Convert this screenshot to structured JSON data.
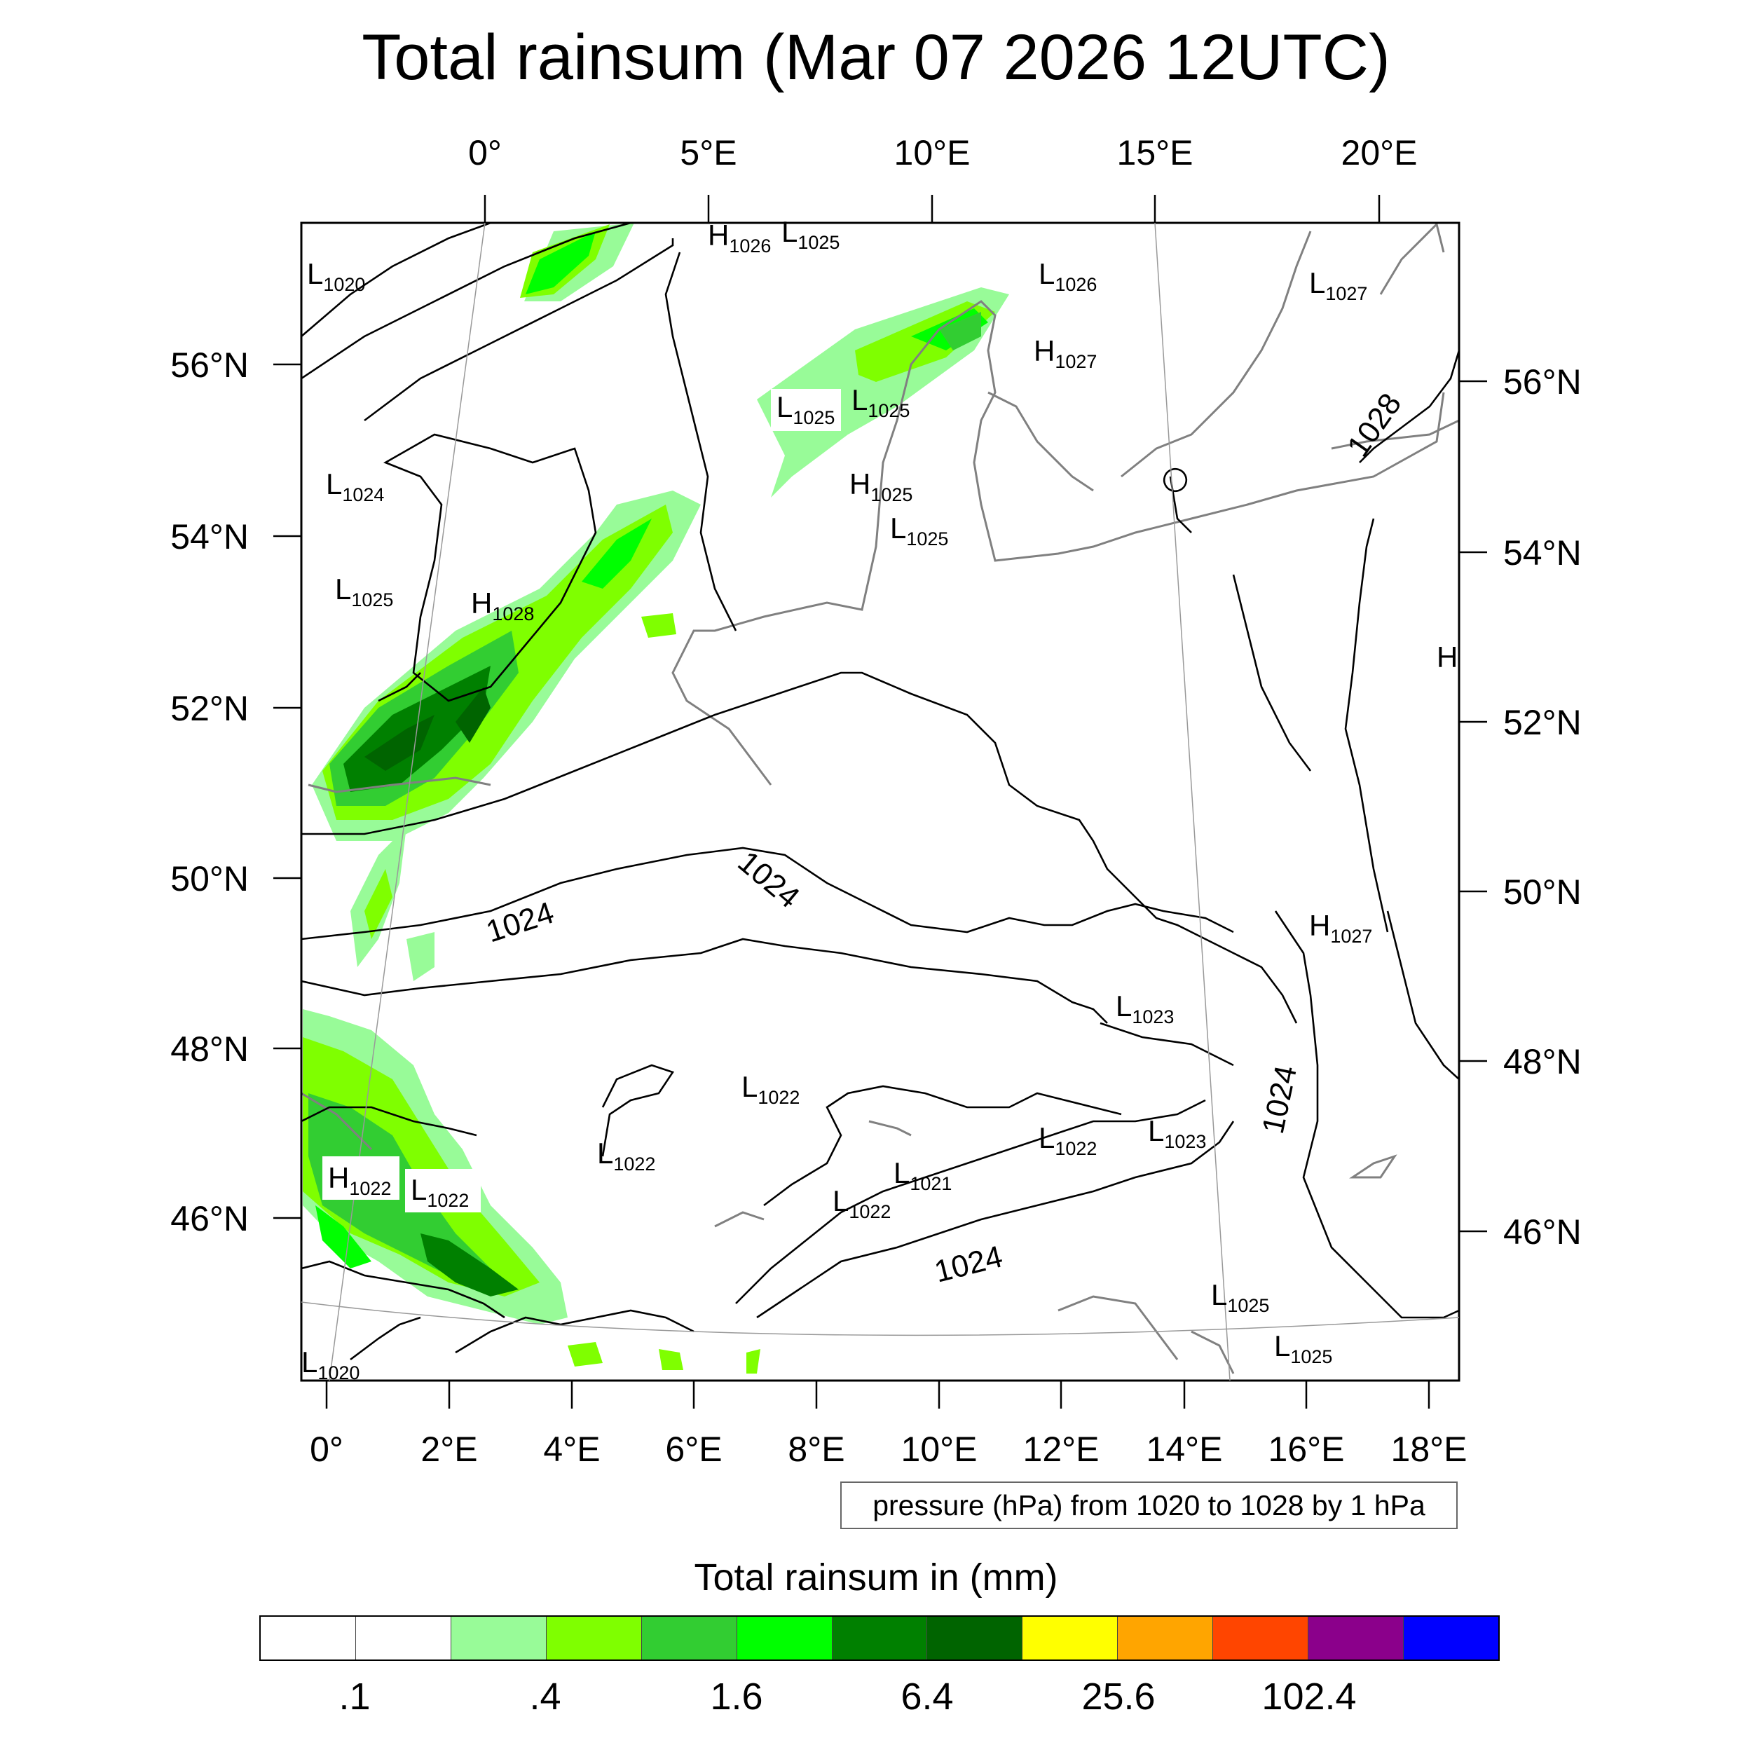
{
  "title": "Total rainsum (Mar 07 2026 12UTC)",
  "axes": {
    "top_lon_labels": [
      "0°",
      "5°E",
      "10°E",
      "15°E",
      "20°E"
    ],
    "bottom_lon_labels": [
      "0°",
      "2°E",
      "4°E",
      "6°E",
      "8°E",
      "10°E",
      "12°E",
      "14°E",
      "16°E",
      "18°E"
    ],
    "left_lat_labels": [
      "56°N",
      "54°N",
      "52°N",
      "50°N",
      "48°N",
      "46°N"
    ],
    "right_lat_labels": [
      "56°N",
      "54°N",
      "52°N",
      "50°N",
      "48°N",
      "46°N"
    ]
  },
  "pressure_centers": [
    {
      "letter": "L",
      "value": "1020"
    },
    {
      "letter": "H",
      "value": "1026"
    },
    {
      "letter": "L",
      "value": "1025"
    },
    {
      "letter": "L",
      "value": "1026"
    },
    {
      "letter": "L",
      "value": "1027"
    },
    {
      "letter": "H",
      "value": "1027"
    },
    {
      "letter": "L",
      "value": "1025"
    },
    {
      "letter": "L",
      "value": "1025"
    },
    {
      "letter": "L",
      "value": "1024"
    },
    {
      "letter": "H",
      "value": "1025"
    },
    {
      "letter": "L",
      "value": "1025"
    },
    {
      "letter": "L",
      "value": "1025"
    },
    {
      "letter": "H",
      "value": "1028"
    },
    {
      "letter": "H",
      "value": ""
    },
    {
      "letter": "H",
      "value": "1027"
    },
    {
      "letter": "L",
      "value": "1023"
    },
    {
      "letter": "L",
      "value": "1022"
    },
    {
      "letter": "L",
      "value": "1022"
    },
    {
      "letter": "L",
      "value": "1022"
    },
    {
      "letter": "L",
      "value": "1023"
    },
    {
      "letter": "L",
      "value": "1021"
    },
    {
      "letter": "H",
      "value": "1022"
    },
    {
      "letter": "L",
      "value": "1022"
    },
    {
      "letter": "L",
      "value": "1022"
    },
    {
      "letter": "L",
      "value": "1025"
    },
    {
      "letter": "L",
      "value": "1025"
    },
    {
      "letter": "L",
      "value": "1020"
    }
  ],
  "contour_labels": [
    "1028",
    "1024",
    "1024",
    "1024",
    "1024"
  ],
  "pressure_note": "pressure (hPa) from 1020 to 1028 by 1 hPa",
  "colorbar": {
    "title": "Total rainsum in (mm)",
    "colors": [
      "#ffffff",
      "#ffffff",
      "#98fb98",
      "#7fff00",
      "#32cd32",
      "#00ff00",
      "#008000",
      "#006400",
      "#ffff00",
      "#ffa500",
      "#ff4500",
      "#8b008b",
      "#0000ff"
    ],
    "labels": [
      ".1",
      ".4",
      "1.6",
      "6.4",
      "25.6",
      "102.4"
    ]
  },
  "colors": {
    "rain_light": "#98fb98",
    "rain_lime": "#7fff00",
    "rain_mid": "#32cd32",
    "rain_green": "#00ff00",
    "rain_dark": "#008000",
    "rain_darkest": "#006400",
    "isobar": "#000000",
    "coastline": "#808080"
  }
}
